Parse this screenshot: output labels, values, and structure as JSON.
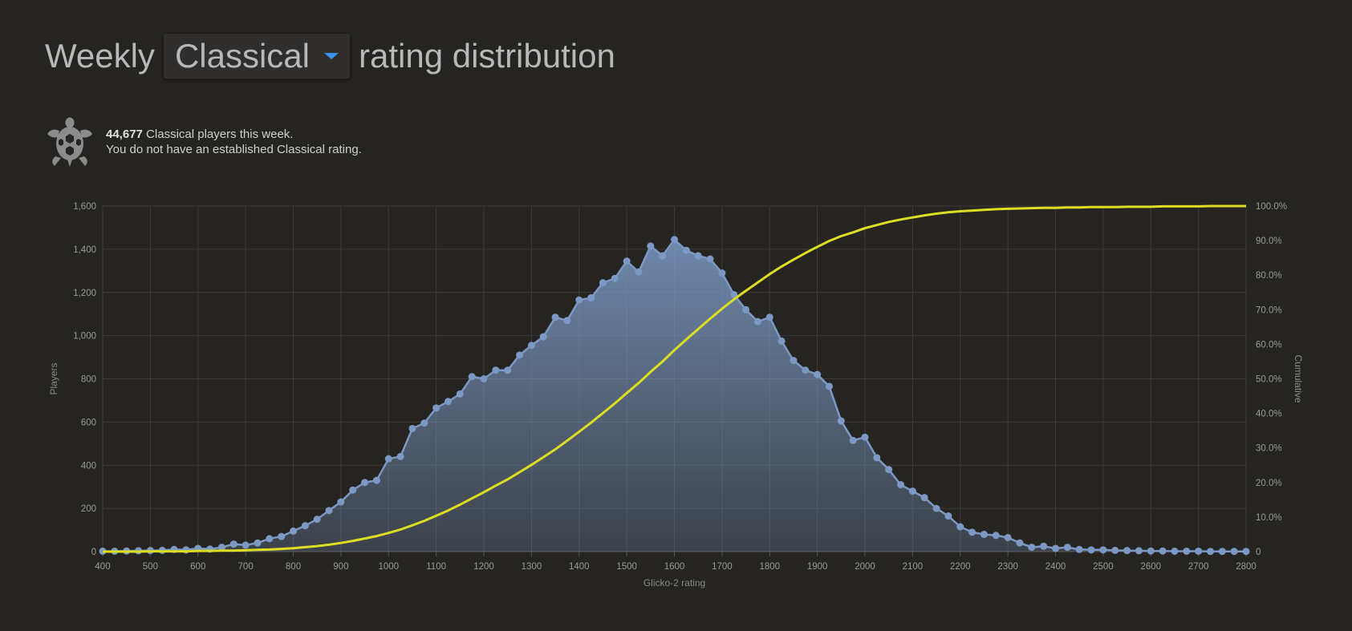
{
  "header": {
    "prefix": "Weekly",
    "variant": "Classical",
    "suffix": "rating distribution"
  },
  "info": {
    "count": "44,677",
    "count_suffix": " Classical players this week.",
    "rating_note": "You do not have an established Classical rating."
  },
  "icons": {
    "variant": "turtle-icon",
    "dropdown": "caret-down-icon"
  },
  "colors": {
    "players_series": "#7b99c4",
    "cumulative_series": "#dddd22",
    "background": "#262421"
  },
  "chart_data": {
    "type": "area",
    "title": "",
    "xlabel": "Glicko-2 rating",
    "ylabel": "Players",
    "y2label": "Cumulative",
    "xlim": [
      400,
      2800
    ],
    "ylim": [
      0,
      1600
    ],
    "y2lim": [
      0,
      100
    ],
    "grid": true,
    "x_ticks": [
      "400",
      "500",
      "600",
      "700",
      "800",
      "900",
      "1000",
      "1100",
      "1200",
      "1300",
      "1400",
      "1500",
      "1600",
      "1700",
      "1800",
      "1900",
      "2000",
      "2100",
      "2200",
      "2300",
      "2400",
      "2500",
      "2600",
      "2700",
      "2800"
    ],
    "y_ticks": [
      "0",
      "200",
      "400",
      "600",
      "800",
      "1,000",
      "1,200",
      "1,400",
      "1,600"
    ],
    "y2_ticks": [
      "0",
      "10.0%",
      "20.0%",
      "30.0%",
      "40.0%",
      "50.0%",
      "60.0%",
      "70.0%",
      "80.0%",
      "90.0%",
      "100.0%"
    ],
    "x": [
      400,
      425,
      450,
      475,
      500,
      525,
      550,
      575,
      600,
      625,
      650,
      675,
      700,
      725,
      750,
      775,
      800,
      825,
      850,
      875,
      900,
      925,
      950,
      975,
      1000,
      1025,
      1050,
      1075,
      1100,
      1125,
      1150,
      1175,
      1200,
      1225,
      1250,
      1275,
      1300,
      1325,
      1350,
      1375,
      1400,
      1425,
      1450,
      1475,
      1500,
      1525,
      1550,
      1575,
      1600,
      1625,
      1650,
      1675,
      1700,
      1725,
      1750,
      1775,
      1800,
      1825,
      1850,
      1875,
      1900,
      1925,
      1950,
      1975,
      2000,
      2025,
      2050,
      2075,
      2100,
      2125,
      2150,
      2175,
      2200,
      2225,
      2250,
      2275,
      2300,
      2325,
      2350,
      2375,
      2400,
      2425,
      2450,
      2475,
      2500,
      2525,
      2550,
      2575,
      2600,
      2625,
      2650,
      2675,
      2700,
      2725,
      2750,
      2775,
      2800
    ],
    "series": [
      {
        "name": "Players",
        "axis": "left",
        "values": [
          2,
          2,
          3,
          4,
          5,
          6,
          10,
          8,
          15,
          12,
          20,
          35,
          30,
          40,
          60,
          70,
          95,
          120,
          150,
          190,
          230,
          285,
          320,
          330,
          430,
          440,
          570,
          595,
          665,
          695,
          730,
          810,
          800,
          840,
          840,
          910,
          955,
          995,
          1085,
          1070,
          1165,
          1175,
          1245,
          1265,
          1345,
          1295,
          1415,
          1370,
          1445,
          1395,
          1370,
          1355,
          1290,
          1190,
          1120,
          1065,
          1085,
          975,
          885,
          840,
          820,
          765,
          605,
          515,
          530,
          435,
          380,
          310,
          280,
          250,
          200,
          165,
          115,
          90,
          80,
          75,
          65,
          40,
          20,
          25,
          15,
          20,
          10,
          8,
          8,
          6,
          5,
          4,
          3,
          3,
          2,
          2,
          2,
          1,
          1,
          1,
          1
        ]
      },
      {
        "name": "Cumulative",
        "axis": "right",
        "type": "line",
        "values": [
          0,
          0,
          0,
          0,
          0.1,
          0.1,
          0.1,
          0.1,
          0.2,
          0.2,
          0.3,
          0.3,
          0.4,
          0.5,
          0.6,
          0.8,
          1.0,
          1.3,
          1.6,
          2.0,
          2.5,
          3.1,
          3.8,
          4.5,
          5.4,
          6.4,
          7.6,
          8.9,
          10.4,
          11.9,
          13.6,
          15.4,
          17.2,
          19.1,
          20.9,
          23.0,
          25.1,
          27.3,
          29.6,
          32.1,
          34.7,
          37.3,
          40.1,
          42.9,
          45.9,
          48.8,
          52.0,
          55.0,
          58.3,
          61.4,
          64.4,
          67.4,
          70.3,
          73.0,
          75.5,
          77.9,
          80.3,
          82.5,
          84.5,
          86.4,
          88.2,
          89.9,
          91.3,
          92.4,
          93.6,
          94.5,
          95.4,
          96.1,
          96.7,
          97.3,
          97.8,
          98.2,
          98.5,
          98.7,
          98.9,
          99.1,
          99.2,
          99.3,
          99.4,
          99.5,
          99.5,
          99.6,
          99.6,
          99.7,
          99.7,
          99.7,
          99.8,
          99.8,
          99.8,
          99.9,
          99.9,
          99.9,
          99.9,
          100,
          100,
          100,
          100
        ]
      }
    ]
  }
}
